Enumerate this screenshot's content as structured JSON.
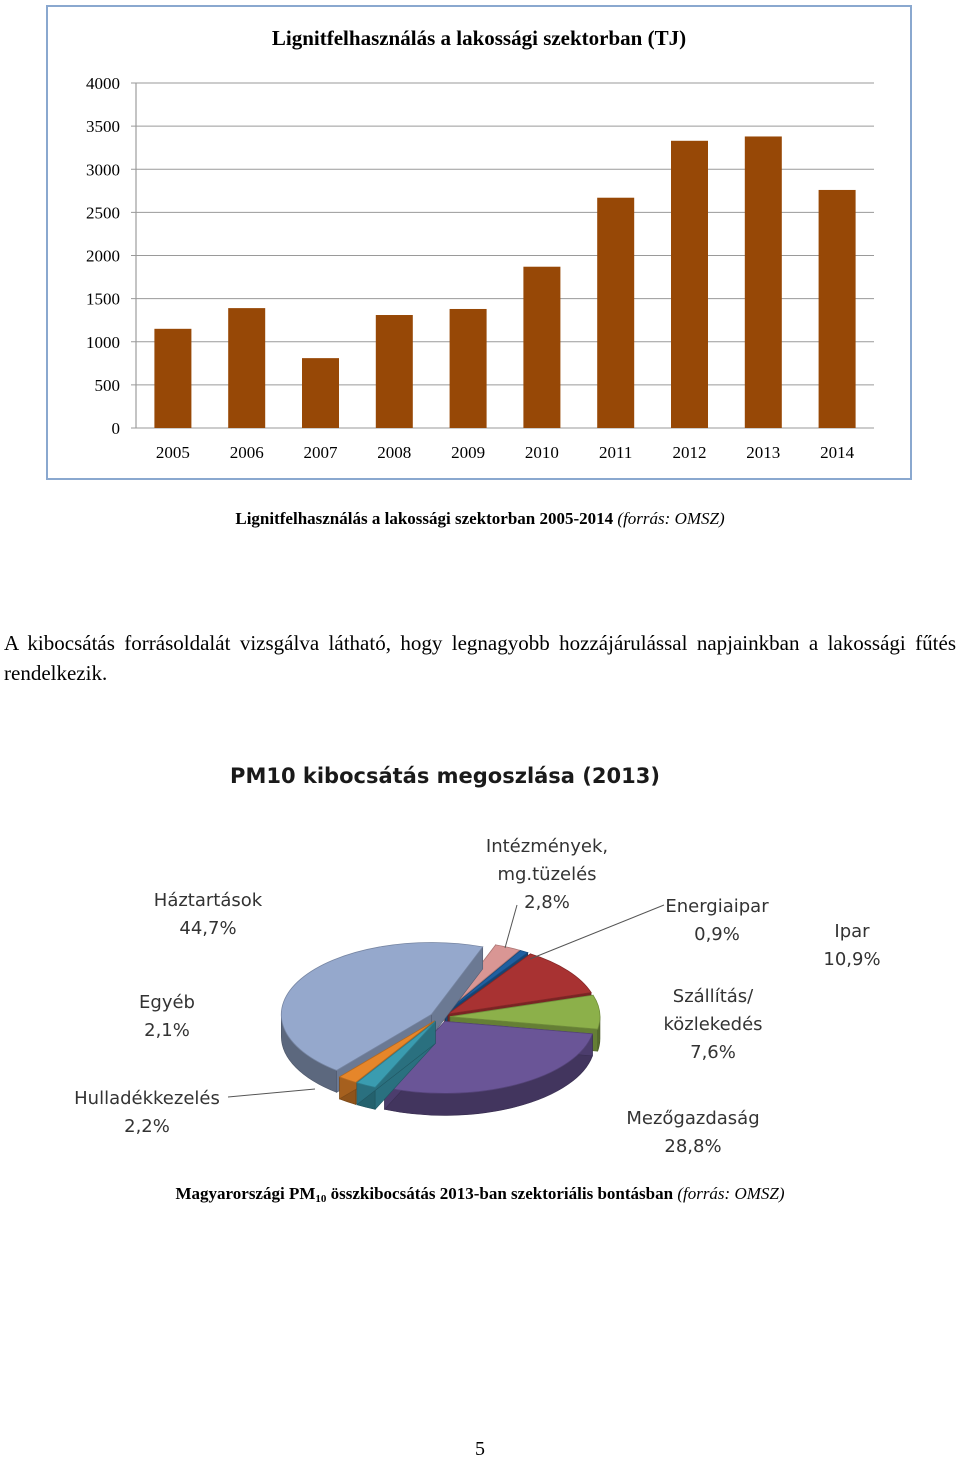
{
  "bar_chart": {
    "chart_data": {
      "type": "bar",
      "title": "Lignitfelhasználás a lakossági szektorban (TJ)",
      "categories": [
        "2005",
        "2006",
        "2007",
        "2008",
        "2009",
        "2010",
        "2011",
        "2012",
        "2013",
        "2014"
      ],
      "values": [
        1150,
        1390,
        810,
        1310,
        1380,
        1870,
        2670,
        3330,
        3380,
        2760
      ],
      "ylim": [
        0,
        4000
      ],
      "yticks": [
        0,
        500,
        1000,
        1500,
        2000,
        2500,
        3000,
        3500,
        4000
      ],
      "grid": true,
      "bar_color": "#974806"
    }
  },
  "caption1": {
    "bold": "Lignitfelhasználás a lakossági szektorban 2005-2014",
    "italic": "(forrás: OMSZ)"
  },
  "paragraph": "A kibocsátás forrásoldalát vizsgálva látható, hogy legnagyobb hozzájárulással napjainkban a lakossági fűtés rendelkezik.",
  "pie_chart": {
    "chart_data": {
      "type": "pie",
      "title": "PM10 kibocsátás megoszlása (2013)",
      "slices": [
        {
          "label": [
            "Intézmények,",
            "mg.tüzelés"
          ],
          "value_label": "2,8%",
          "value": 2.8,
          "color": "#d99694"
        },
        {
          "label": [
            "Energiaipar"
          ],
          "value_label": "0,9%",
          "value": 0.9,
          "color": "#1f5fa0"
        },
        {
          "label": [
            "Ipar"
          ],
          "value_label": "10,9%",
          "value": 10.9,
          "color": "#a83232"
        },
        {
          "label": [
            "Szállítás/",
            "közlekedés"
          ],
          "value_label": "7,6%",
          "value": 7.6,
          "color": "#8cb04a"
        },
        {
          "label": [
            "Mezőgazdaság"
          ],
          "value_label": "28,8%",
          "value": 28.8,
          "color": "#6a5597"
        },
        {
          "label": [
            "Hulladékkezelés"
          ],
          "value_label": "2,2%",
          "value": 2.2,
          "color": "#3a9cb0"
        },
        {
          "label": [
            "Egyéb"
          ],
          "value_label": "2,1%",
          "value": 2.1,
          "color": "#e6862a"
        },
        {
          "label": [
            "Háztartások"
          ],
          "value_label": "44,7%",
          "value": 44.7,
          "color": "#95a8cc"
        }
      ]
    }
  },
  "caption2": {
    "bold_before": "Magyarországi PM",
    "sub": "10",
    "bold_after": " összkibocsátás 2013-ban szektoriális bontásban",
    "italic": "(forrás: OMSZ)"
  },
  "page_number": "5"
}
